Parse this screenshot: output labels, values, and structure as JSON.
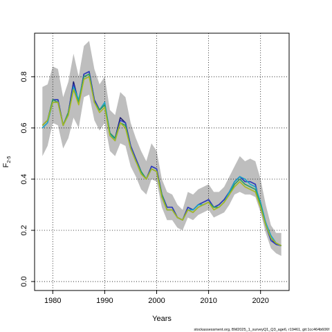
{
  "chart_data": {
    "type": "line",
    "xlabel": "Years",
    "ylabel_main": "F",
    "ylabel_sub": "2-5",
    "x_ticks": [
      1980,
      1990,
      2000,
      2010,
      2020
    ],
    "y_ticks": [
      "0.0",
      "0.2",
      "0.4",
      "0.6",
      "0.8"
    ],
    "xlim": [
      1976.5,
      2025.5
    ],
    "ylim": [
      -0.035,
      0.97
    ],
    "grid": true,
    "band_color": "#bebebe",
    "years": [
      1978,
      1979,
      1980,
      1981,
      1982,
      1983,
      1984,
      1985,
      1986,
      1987,
      1988,
      1989,
      1990,
      1991,
      1992,
      1993,
      1994,
      1995,
      1996,
      1997,
      1998,
      1999,
      2000,
      2001,
      2002,
      2003,
      2004,
      2005,
      2006,
      2007,
      2008,
      2009,
      2010,
      2011,
      2012,
      2013,
      2014,
      2015,
      2016,
      2017,
      2018,
      2019,
      2020,
      2021,
      2022,
      2023,
      2024
    ],
    "band_upper": [
      0.76,
      0.77,
      0.84,
      0.83,
      0.72,
      0.78,
      0.89,
      0.8,
      0.92,
      0.94,
      0.83,
      0.77,
      0.8,
      0.67,
      0.65,
      0.74,
      0.72,
      0.62,
      0.56,
      0.51,
      0.47,
      0.54,
      0.51,
      0.4,
      0.35,
      0.34,
      0.3,
      0.28,
      0.35,
      0.34,
      0.36,
      0.37,
      0.38,
      0.35,
      0.35,
      0.37,
      0.41,
      0.45,
      0.49,
      0.47,
      0.48,
      0.47,
      0.4,
      0.3,
      0.22,
      0.19,
      0.19
    ],
    "band_lower": [
      0.49,
      0.53,
      0.62,
      0.61,
      0.52,
      0.56,
      0.64,
      0.6,
      0.72,
      0.73,
      0.63,
      0.59,
      0.62,
      0.51,
      0.49,
      0.54,
      0.53,
      0.45,
      0.41,
      0.36,
      0.34,
      0.4,
      0.39,
      0.29,
      0.24,
      0.24,
      0.21,
      0.2,
      0.25,
      0.24,
      0.26,
      0.27,
      0.28,
      0.25,
      0.26,
      0.27,
      0.3,
      0.34,
      0.35,
      0.34,
      0.34,
      0.33,
      0.27,
      0.19,
      0.13,
      0.11,
      0.1
    ],
    "series": [
      {
        "color": "#1a1a6e",
        "values": [
          0.61,
          0.63,
          0.71,
          0.71,
          0.61,
          0.66,
          0.78,
          0.7,
          0.81,
          0.82,
          0.71,
          0.67,
          0.69,
          0.58,
          0.56,
          0.64,
          0.62,
          0.53,
          0.48,
          0.43,
          0.4,
          0.45,
          0.44,
          0.34,
          0.29,
          0.29,
          0.25,
          0.24,
          0.29,
          0.28,
          0.3,
          0.31,
          0.32,
          0.29,
          0.3,
          0.32,
          0.35,
          0.39,
          0.41,
          0.39,
          0.39,
          0.38,
          0.29,
          0.23,
          0.17,
          0.145,
          0.14
        ]
      },
      {
        "color": "#2f3fbf",
        "values": [
          0.61,
          0.63,
          0.71,
          0.71,
          0.61,
          0.66,
          0.77,
          0.7,
          0.81,
          0.82,
          0.71,
          0.67,
          0.69,
          0.58,
          0.56,
          0.63,
          0.62,
          0.53,
          0.48,
          0.43,
          0.4,
          0.45,
          0.44,
          0.34,
          0.29,
          0.29,
          0.25,
          0.24,
          0.29,
          0.28,
          0.3,
          0.31,
          0.32,
          0.29,
          0.3,
          0.32,
          0.35,
          0.39,
          0.41,
          0.39,
          0.39,
          0.38,
          0.29,
          0.22,
          0.16,
          0.145,
          0.14
        ]
      },
      {
        "color": "#1aa3c8",
        "values": [
          0.6,
          0.62,
          0.7,
          0.7,
          0.61,
          0.65,
          0.76,
          0.71,
          0.8,
          0.81,
          0.7,
          0.67,
          0.7,
          0.58,
          0.55,
          0.62,
          0.61,
          0.52,
          0.47,
          0.43,
          0.4,
          0.44,
          0.43,
          0.33,
          0.28,
          0.28,
          0.25,
          0.24,
          0.28,
          0.28,
          0.3,
          0.3,
          0.31,
          0.29,
          0.29,
          0.31,
          0.35,
          0.39,
          0.41,
          0.4,
          0.38,
          0.37,
          0.31,
          0.23,
          0.18,
          0.15,
          0.14
        ]
      },
      {
        "color": "#2e9e5e",
        "values": [
          0.61,
          0.63,
          0.71,
          0.7,
          0.61,
          0.66,
          0.75,
          0.7,
          0.8,
          0.81,
          0.7,
          0.67,
          0.69,
          0.58,
          0.56,
          0.62,
          0.61,
          0.52,
          0.47,
          0.43,
          0.4,
          0.44,
          0.43,
          0.34,
          0.28,
          0.28,
          0.25,
          0.24,
          0.28,
          0.27,
          0.29,
          0.3,
          0.31,
          0.29,
          0.29,
          0.31,
          0.34,
          0.38,
          0.4,
          0.38,
          0.37,
          0.36,
          0.3,
          0.22,
          0.17,
          0.15,
          0.14
        ]
      },
      {
        "color": "#a8b820",
        "values": [
          0.61,
          0.63,
          0.7,
          0.7,
          0.61,
          0.65,
          0.75,
          0.69,
          0.79,
          0.8,
          0.7,
          0.66,
          0.68,
          0.57,
          0.55,
          0.62,
          0.6,
          0.52,
          0.47,
          0.42,
          0.4,
          0.44,
          0.43,
          0.33,
          0.28,
          0.28,
          0.25,
          0.24,
          0.28,
          0.27,
          0.29,
          0.3,
          0.31,
          0.28,
          0.29,
          0.31,
          0.34,
          0.37,
          0.39,
          0.37,
          0.36,
          0.35,
          0.29,
          0.22,
          0.17,
          0.15,
          0.14
        ]
      }
    ]
  },
  "footer_text": "stockassessment.org, BM2025_1_surveyQ1_Q3_age6, r19461, git:1cc464b606f"
}
